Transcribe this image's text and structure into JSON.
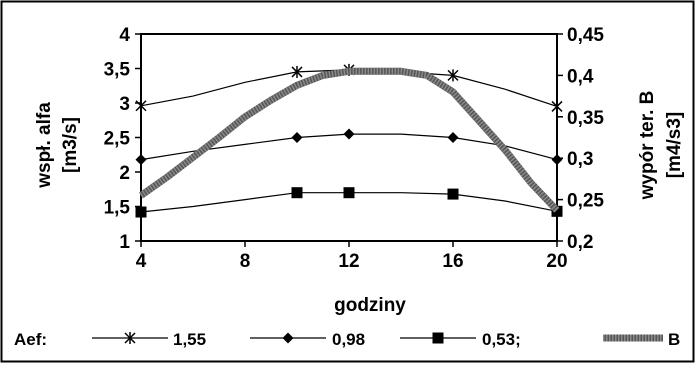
{
  "chart_data": {
    "type": "line",
    "title": "",
    "xlabel": "godziny",
    "ylabel_left": "wspł. alfa [m3/s]",
    "ylabel_right": "wypór ter. B [m4/s3]",
    "xlim": [
      4,
      20
    ],
    "ylim_left": [
      1,
      4
    ],
    "ylim_right": [
      0.2,
      0.45
    ],
    "x_ticks": [
      "4",
      "8",
      "12",
      "16",
      "20"
    ],
    "y_left_ticks": [
      "1",
      "1,5",
      "2",
      "2,5",
      "3",
      "3,5",
      "4"
    ],
    "y_right_ticks": [
      "0,2",
      "0,25",
      "0,3",
      "0,35",
      "0,4",
      "0,45"
    ],
    "grid": false,
    "legend_position": "bottom",
    "legend_prefix": "Aef:",
    "series": [
      {
        "name": "1,55",
        "axis": "left",
        "marker": "asterisk",
        "color": "#000000",
        "x": [
          4,
          6,
          8,
          10,
          12,
          14,
          16,
          18,
          20
        ],
        "y": [
          2.96,
          3.1,
          3.3,
          3.45,
          3.48,
          3.45,
          3.4,
          3.2,
          2.95
        ],
        "marker_x": [
          4,
          10,
          12,
          16,
          20
        ]
      },
      {
        "name": "0,98",
        "axis": "left",
        "marker": "diamond",
        "color": "#000000",
        "x": [
          4,
          6,
          8,
          10,
          12,
          14,
          16,
          18,
          20
        ],
        "y": [
          2.18,
          2.3,
          2.4,
          2.5,
          2.55,
          2.55,
          2.5,
          2.38,
          2.18
        ],
        "marker_x": [
          4,
          10,
          12,
          16,
          20
        ]
      },
      {
        "name": "0,53;",
        "axis": "left",
        "marker": "square",
        "color": "#000000",
        "x": [
          4,
          6,
          8,
          10,
          12,
          14,
          16,
          18,
          20
        ],
        "y": [
          1.42,
          1.5,
          1.6,
          1.7,
          1.7,
          1.7,
          1.68,
          1.58,
          1.43
        ],
        "marker_x": [
          4,
          10,
          12,
          16,
          20
        ]
      },
      {
        "name": "B",
        "axis": "right",
        "marker": "none",
        "color": "#666666",
        "x": [
          4,
          5,
          6,
          7,
          8,
          9,
          10,
          11,
          12,
          13,
          14,
          15,
          16,
          17,
          18,
          19,
          20
        ],
        "y": [
          0.255,
          0.277,
          0.301,
          0.325,
          0.35,
          0.37,
          0.388,
          0.4,
          0.405,
          0.405,
          0.405,
          0.4,
          0.38,
          0.345,
          0.31,
          0.27,
          0.237
        ]
      }
    ]
  }
}
